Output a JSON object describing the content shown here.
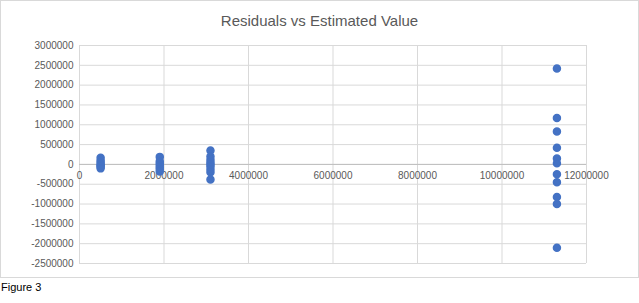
{
  "chart_data": {
    "type": "scatter",
    "title": "Residuals vs Estimated Value",
    "caption": "Figure 3",
    "x": [
      500000,
      500000,
      500000,
      500000,
      500000,
      500000,
      500000,
      1900000,
      1900000,
      1900000,
      1900000,
      1900000,
      1900000,
      1900000,
      3100000,
      3100000,
      3100000,
      3100000,
      3100000,
      3100000,
      3100000,
      3100000,
      3100000,
      11300000,
      11300000,
      11300000,
      11300000,
      11300000,
      11300000,
      11300000,
      11300000,
      11300000,
      11300000,
      11300000
    ],
    "values": [
      170000,
      100000,
      50000,
      0,
      -30000,
      -60000,
      -100000,
      190000,
      80000,
      30000,
      -20000,
      -70000,
      -120000,
      -180000,
      350000,
      200000,
      120000,
      50000,
      0,
      -50000,
      -130000,
      -200000,
      -380000,
      2420000,
      1170000,
      830000,
      420000,
      150000,
      30000,
      -250000,
      -450000,
      -820000,
      -1000000,
      -2100000
    ],
    "color": "#4472c4",
    "marker": "circle",
    "xlim": [
      0,
      12000000
    ],
    "xticks": [
      0,
      2000000,
      4000000,
      6000000,
      8000000,
      10000000,
      12000000
    ],
    "ylim": [
      -2500000,
      3000000
    ],
    "yticks": [
      -2500000,
      -2000000,
      -1500000,
      -1000000,
      -500000,
      0,
      500000,
      1000000,
      1500000,
      2000000,
      2500000,
      3000000
    ],
    "grid": true
  }
}
